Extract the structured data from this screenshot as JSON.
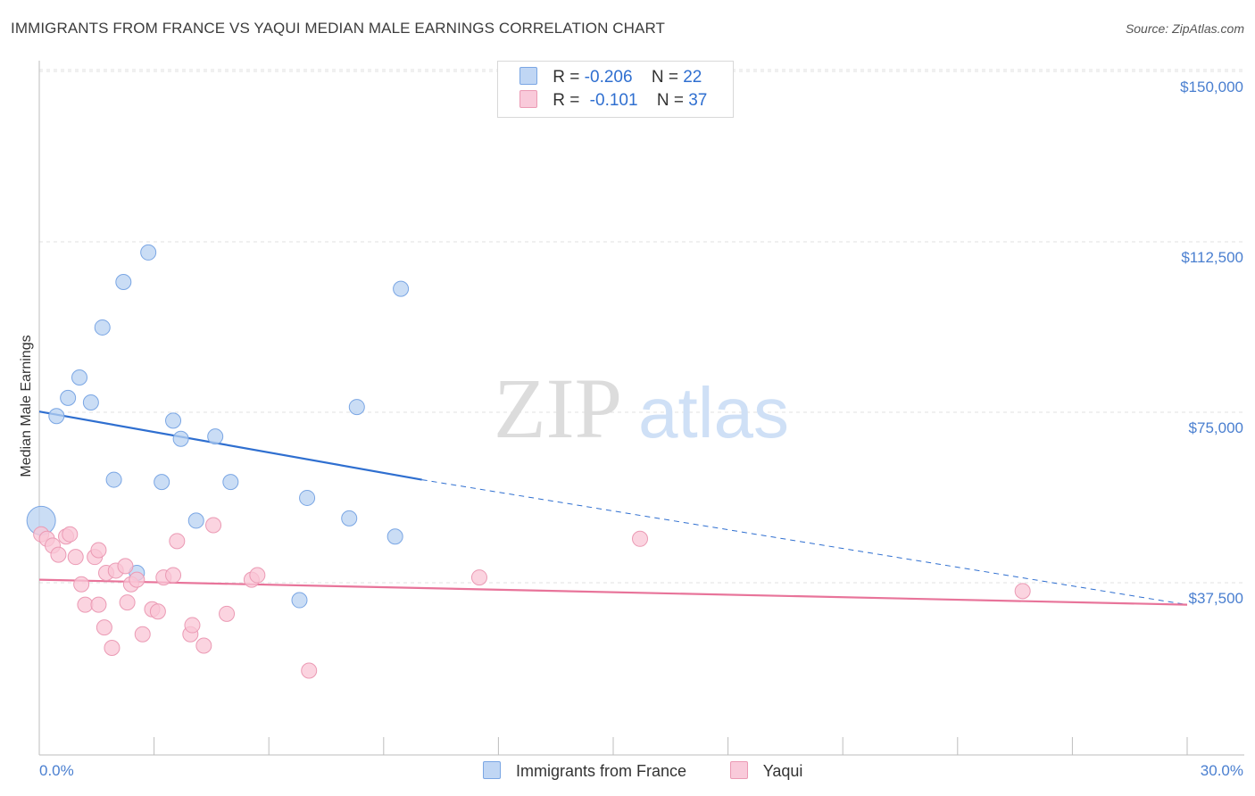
{
  "title": "IMMIGRANTS FROM FRANCE VS YAQUI MEDIAN MALE EARNINGS CORRELATION CHART",
  "source": "Source: ZipAtlas.com",
  "watermark": {
    "zip": "ZIP",
    "atlas": "atlas"
  },
  "legend": {
    "r_label": "R =",
    "n_label": "N =",
    "rows": [
      {
        "r": "-0.206",
        "n": "22",
        "color": "#aac8f0",
        "border": "#6f9fe0"
      },
      {
        "r": "-0.101",
        "n": "37",
        "color": "#f8c0d2",
        "border": "#e890aa"
      }
    ]
  },
  "colors": {
    "blue_point": "#b8d2f2",
    "blue_edge": "#7aa6e4",
    "blue_line": "#2f6fd0",
    "pink_point": "#f9c6d6",
    "pink_edge": "#eb9ab4",
    "pink_line": "#e8749a",
    "grid": "#e2e2e2",
    "tick_text": "#4a7fd0"
  },
  "chart_data": {
    "type": "scatter",
    "title": "IMMIGRANTS FROM FRANCE VS YAQUI MEDIAN MALE EARNINGS CORRELATION CHART",
    "xlabel": "",
    "ylabel": "Median Male Earnings",
    "xlim": [
      0,
      30
    ],
    "ylim": [
      15000,
      155000
    ],
    "x_tick_labels": [
      "0.0%",
      "30.0%"
    ],
    "y_ticks": [
      37500,
      75000,
      112500,
      150000
    ],
    "y_tick_labels": [
      "$37,500",
      "$75,000",
      "$112,500",
      "$150,000"
    ],
    "grid": true,
    "legend_placement": "bottom",
    "series": [
      {
        "name": "Immigrants from France",
        "points": [
          [
            0.05,
            54500,
            "large"
          ],
          [
            0.45,
            77500
          ],
          [
            0.75,
            81500
          ],
          [
            1.05,
            86000
          ],
          [
            1.35,
            80500
          ],
          [
            1.65,
            97000
          ],
          [
            1.95,
            63500
          ],
          [
            2.2,
            107000
          ],
          [
            2.55,
            43000
          ],
          [
            2.85,
            113500
          ],
          [
            3.2,
            63000
          ],
          [
            3.5,
            76500
          ],
          [
            3.7,
            72500
          ],
          [
            4.1,
            54500
          ],
          [
            4.6,
            73000
          ],
          [
            5.0,
            63000
          ],
          [
            6.8,
            37000
          ],
          [
            7.0,
            59500
          ],
          [
            8.1,
            55000
          ],
          [
            8.3,
            79500
          ],
          [
            9.3,
            51000
          ],
          [
            9.45,
            105500
          ]
        ],
        "trend": {
          "x0": 0,
          "y0": 78500,
          "x1": 10,
          "y1": 63500,
          "dashed_to_x": 30,
          "dashed_to_y": 36000
        }
      },
      {
        "name": "Yaqui",
        "points": [
          [
            0.05,
            51500
          ],
          [
            0.2,
            50500
          ],
          [
            0.35,
            49000
          ],
          [
            0.5,
            47000
          ],
          [
            0.7,
            51000
          ],
          [
            0.8,
            51500
          ],
          [
            0.95,
            46500
          ],
          [
            1.1,
            40500
          ],
          [
            1.2,
            36000
          ],
          [
            1.45,
            46500
          ],
          [
            1.55,
            36000
          ],
          [
            1.55,
            48000
          ],
          [
            1.7,
            31000
          ],
          [
            1.75,
            43000
          ],
          [
            1.9,
            26500
          ],
          [
            2.0,
            43500
          ],
          [
            2.25,
            44500
          ],
          [
            2.3,
            36500
          ],
          [
            2.4,
            40500
          ],
          [
            2.55,
            41500
          ],
          [
            2.7,
            29500
          ],
          [
            2.95,
            35000
          ],
          [
            3.1,
            34500
          ],
          [
            3.25,
            42000
          ],
          [
            3.5,
            42500
          ],
          [
            3.6,
            50000
          ],
          [
            3.95,
            29500
          ],
          [
            4.0,
            31500
          ],
          [
            4.3,
            27000
          ],
          [
            4.55,
            53500
          ],
          [
            4.9,
            34000
          ],
          [
            5.55,
            41500
          ],
          [
            5.7,
            42500
          ],
          [
            7.05,
            21500
          ],
          [
            11.5,
            42000
          ],
          [
            15.7,
            50500
          ],
          [
            25.7,
            39000
          ]
        ],
        "trend": {
          "x0": 0,
          "y0": 41500,
          "x1": 30,
          "y1": 36000
        }
      }
    ]
  }
}
